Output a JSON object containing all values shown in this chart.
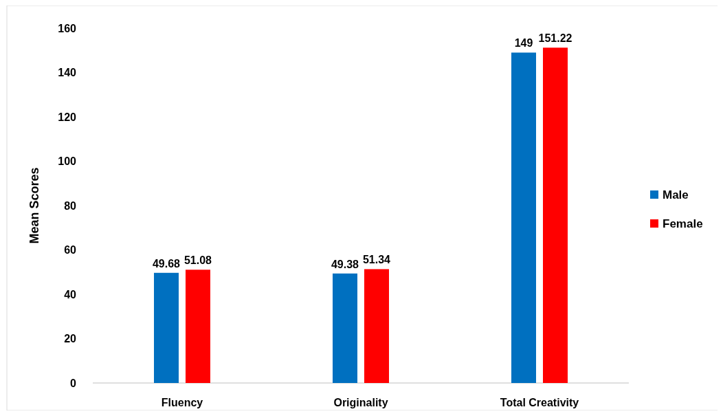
{
  "chart_data": {
    "type": "bar",
    "ylabel": "Mean Scores",
    "categories": [
      "Fluency",
      "Originality",
      "Total Creativity"
    ],
    "series": [
      {
        "name": "Male",
        "color": "#0070c0",
        "values": [
          49.68,
          49.38,
          149
        ]
      },
      {
        "name": "Female",
        "color": "#ff0000",
        "values": [
          51.08,
          51.34,
          151.22
        ]
      }
    ],
    "ylim": [
      0,
      160
    ],
    "yticks": [
      0,
      20,
      40,
      60,
      80,
      100,
      120,
      140,
      160
    ],
    "grid": false,
    "legend": "right",
    "data_labels": true
  }
}
